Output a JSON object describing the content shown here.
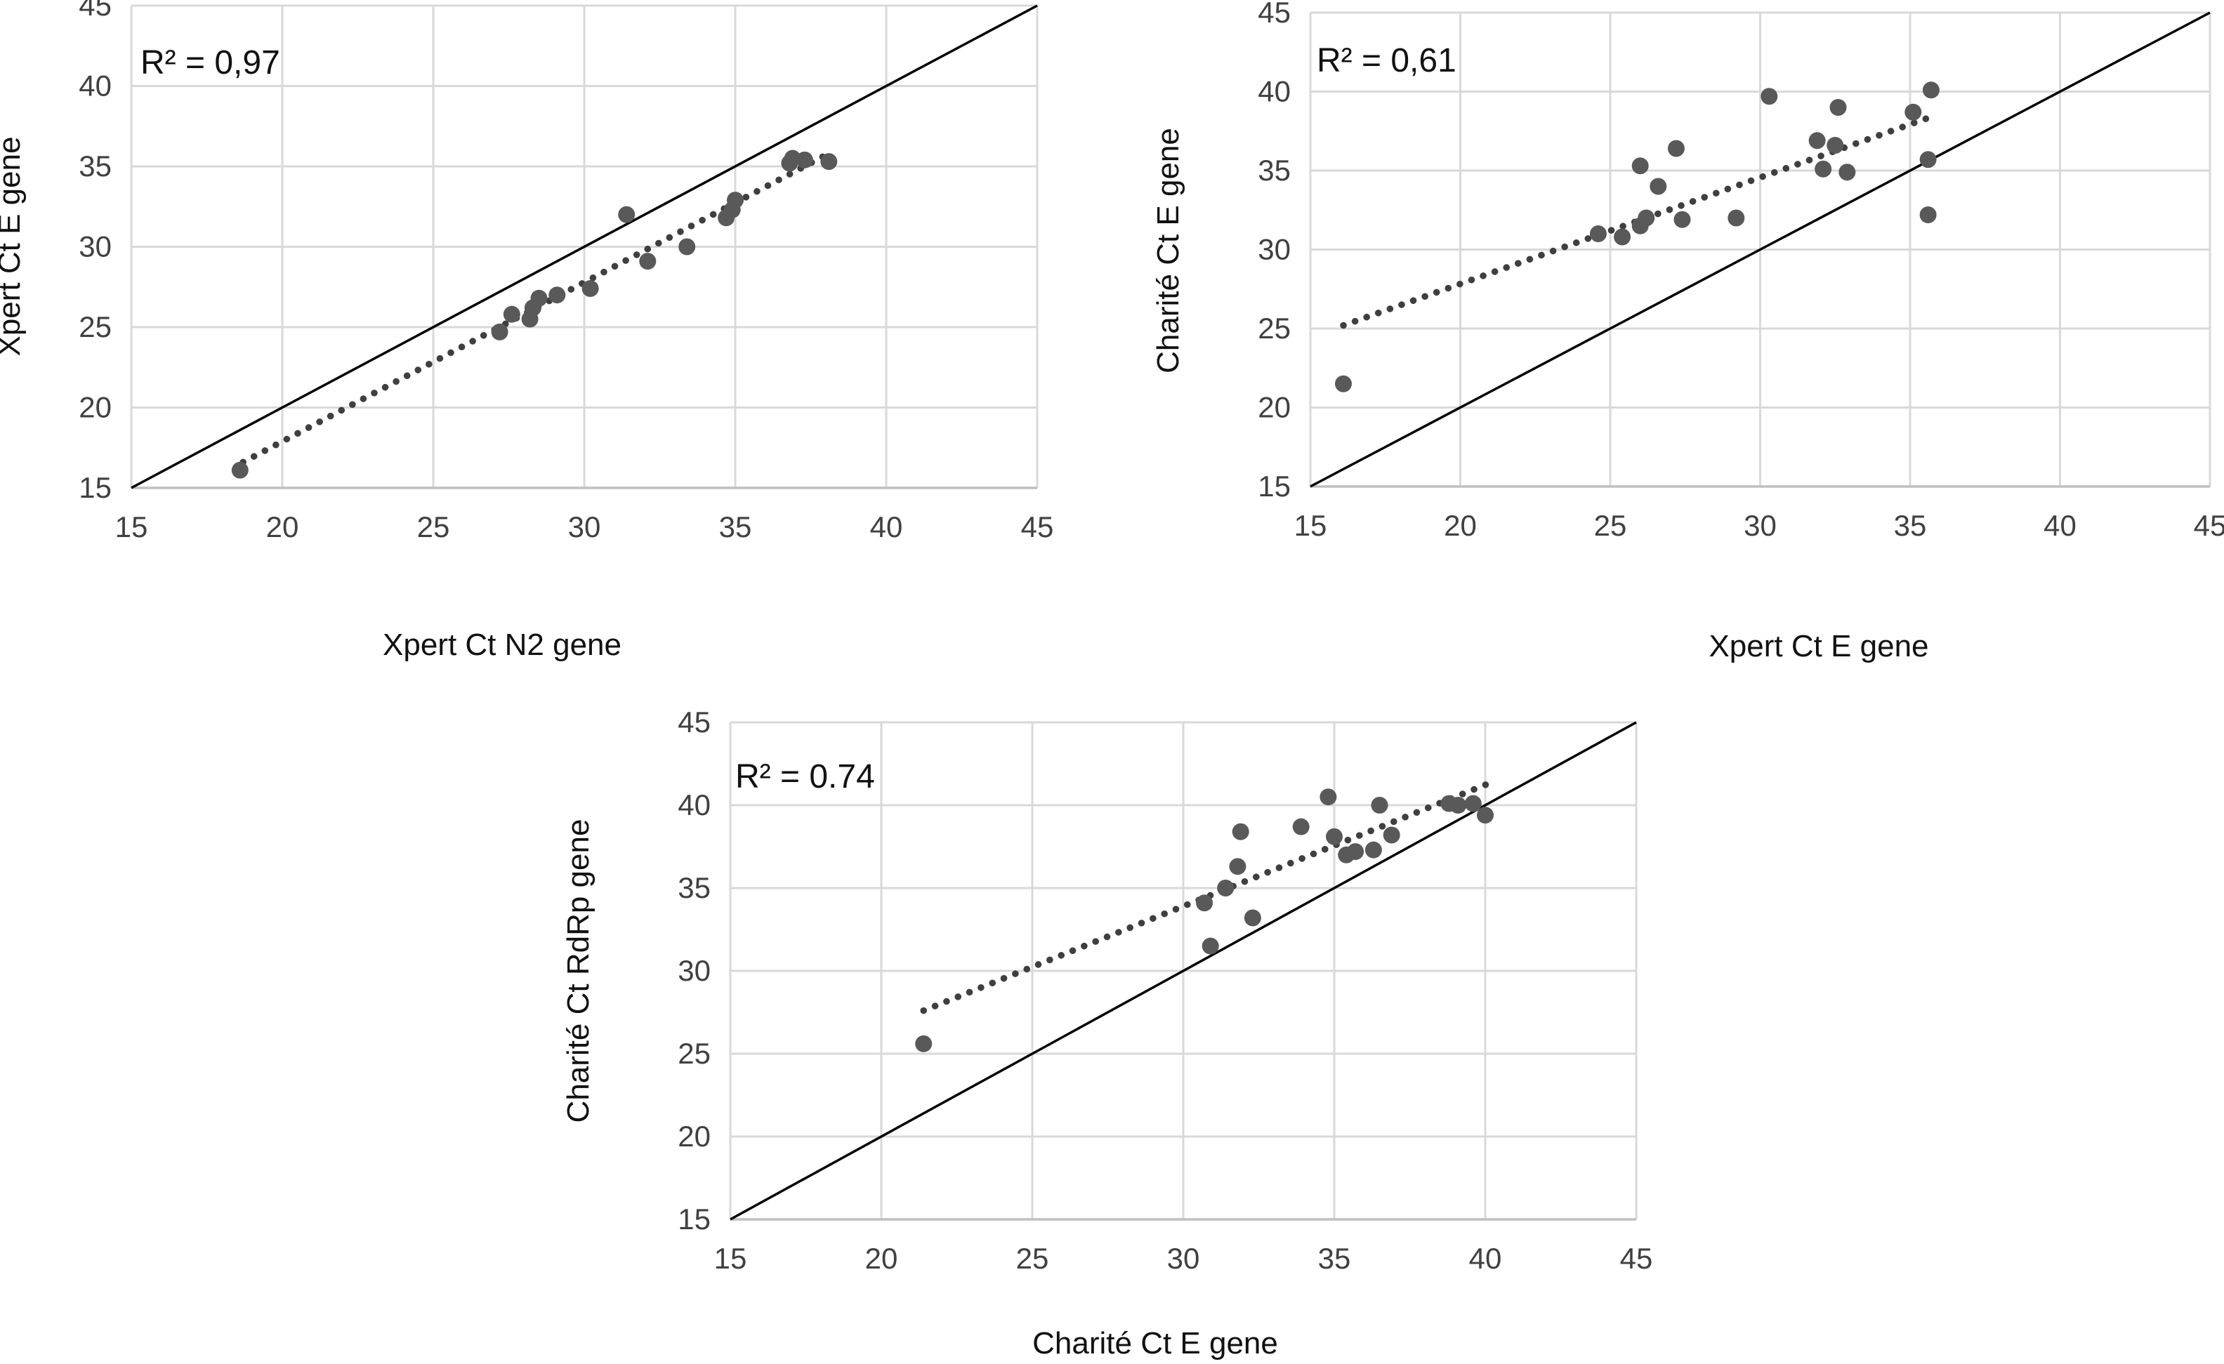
{
  "figure": {
    "background": "#ffffff",
    "description": "Three scatter plots comparing RT-PCR cycle-threshold (Ct) values between assays, each with identity line and dotted linear trendline"
  },
  "colors": {
    "point": "#595959",
    "trendline": "#3f3f3f",
    "identity_line": "#000000",
    "gridline": "#d9d9d9",
    "axis_line": "#bfbfbf",
    "tick_text": "#404040",
    "title_text": "#111111"
  },
  "chart_data": [
    {
      "type": "scatter",
      "r2_label": "R² = 0,97",
      "xlabel": "Xpert Ct N2 gene",
      "ylabel": "Xpert Ct E gene",
      "xlim": [
        15,
        45
      ],
      "ylim": [
        15,
        45
      ],
      "xticks": [
        15,
        20,
        25,
        30,
        35,
        40,
        45
      ],
      "yticks": [
        15,
        20,
        25,
        30,
        35,
        40,
        45
      ],
      "grid": true,
      "legend": "none",
      "identity_line": {
        "x1": 15,
        "y1": 15,
        "x2": 45,
        "y2": 45
      },
      "trendline": {
        "style": "dotted",
        "x1": 18.7,
        "y1": 16.6,
        "x2": 38.1,
        "y2": 35.8
      },
      "points": [
        [
          18.6,
          16.1
        ],
        [
          27.2,
          24.7
        ],
        [
          27.6,
          25.8
        ],
        [
          28.2,
          25.5
        ],
        [
          28.3,
          26.2
        ],
        [
          28.5,
          26.8
        ],
        [
          29.1,
          27.0
        ],
        [
          30.2,
          27.4
        ],
        [
          31.4,
          32.0
        ],
        [
          32.1,
          29.1
        ],
        [
          33.4,
          30.0
        ],
        [
          34.7,
          31.8
        ],
        [
          34.9,
          32.3
        ],
        [
          35.0,
          32.9
        ],
        [
          36.8,
          35.2
        ],
        [
          36.9,
          35.5
        ],
        [
          37.3,
          35.4
        ],
        [
          38.1,
          35.3
        ]
      ]
    },
    {
      "type": "scatter",
      "r2_label": "R² = 0,61",
      "xlabel": "Xpert Ct E gene",
      "ylabel": "Charité Ct E gene",
      "xlim": [
        15,
        45
      ],
      "ylim": [
        15,
        45
      ],
      "xticks": [
        15,
        20,
        25,
        30,
        35,
        40,
        45
      ],
      "yticks": [
        15,
        20,
        25,
        30,
        35,
        40,
        45
      ],
      "grid": true,
      "legend": "none",
      "identity_line": {
        "x1": 15,
        "y1": 15,
        "x2": 45,
        "y2": 45
      },
      "trendline": {
        "style": "dotted",
        "x1": 16.1,
        "y1": 25.2,
        "x2": 35.7,
        "y2": 38.4
      },
      "points": [
        [
          16.1,
          21.5
        ],
        [
          24.6,
          31.0
        ],
        [
          25.4,
          30.8
        ],
        [
          26.0,
          31.5
        ],
        [
          26.2,
          32.0
        ],
        [
          26.0,
          35.3
        ],
        [
          26.6,
          34.0
        ],
        [
          27.2,
          36.4
        ],
        [
          27.4,
          31.9
        ],
        [
          29.2,
          32.0
        ],
        [
          30.3,
          39.7
        ],
        [
          31.9,
          36.9
        ],
        [
          32.1,
          35.1
        ],
        [
          32.5,
          36.6
        ],
        [
          32.6,
          39.0
        ],
        [
          32.9,
          34.9
        ],
        [
          35.1,
          38.7
        ],
        [
          35.7,
          40.1
        ],
        [
          35.6,
          35.7
        ],
        [
          35.6,
          32.2
        ]
      ]
    },
    {
      "type": "scatter",
      "r2_label": "R² = 0.74",
      "xlabel": "Charité Ct E gene",
      "ylabel": "Charité Ct RdRp gene",
      "xlim": [
        15,
        45
      ],
      "ylim": [
        15,
        45
      ],
      "xticks": [
        15,
        20,
        25,
        30,
        35,
        40,
        45
      ],
      "yticks": [
        15,
        20,
        25,
        30,
        35,
        40,
        45
      ],
      "grid": true,
      "legend": "none",
      "identity_line": {
        "x1": 15,
        "y1": 15,
        "x2": 45,
        "y2": 45
      },
      "trendline": {
        "style": "dotted",
        "x1": 21.4,
        "y1": 27.6,
        "x2": 40.1,
        "y2": 41.3
      },
      "points": [
        [
          21.4,
          25.6
        ],
        [
          30.7,
          34.1
        ],
        [
          30.9,
          31.5
        ],
        [
          31.4,
          35.0
        ],
        [
          31.8,
          36.3
        ],
        [
          31.9,
          38.4
        ],
        [
          32.3,
          33.2
        ],
        [
          33.9,
          38.7
        ],
        [
          34.8,
          40.5
        ],
        [
          35.0,
          38.1
        ],
        [
          35.4,
          37.0
        ],
        [
          35.7,
          37.2
        ],
        [
          36.3,
          37.3
        ],
        [
          36.5,
          40.0
        ],
        [
          36.9,
          38.2
        ],
        [
          38.8,
          40.1
        ],
        [
          39.1,
          40.0
        ],
        [
          39.6,
          40.1
        ],
        [
          40.0,
          39.4
        ]
      ]
    }
  ]
}
